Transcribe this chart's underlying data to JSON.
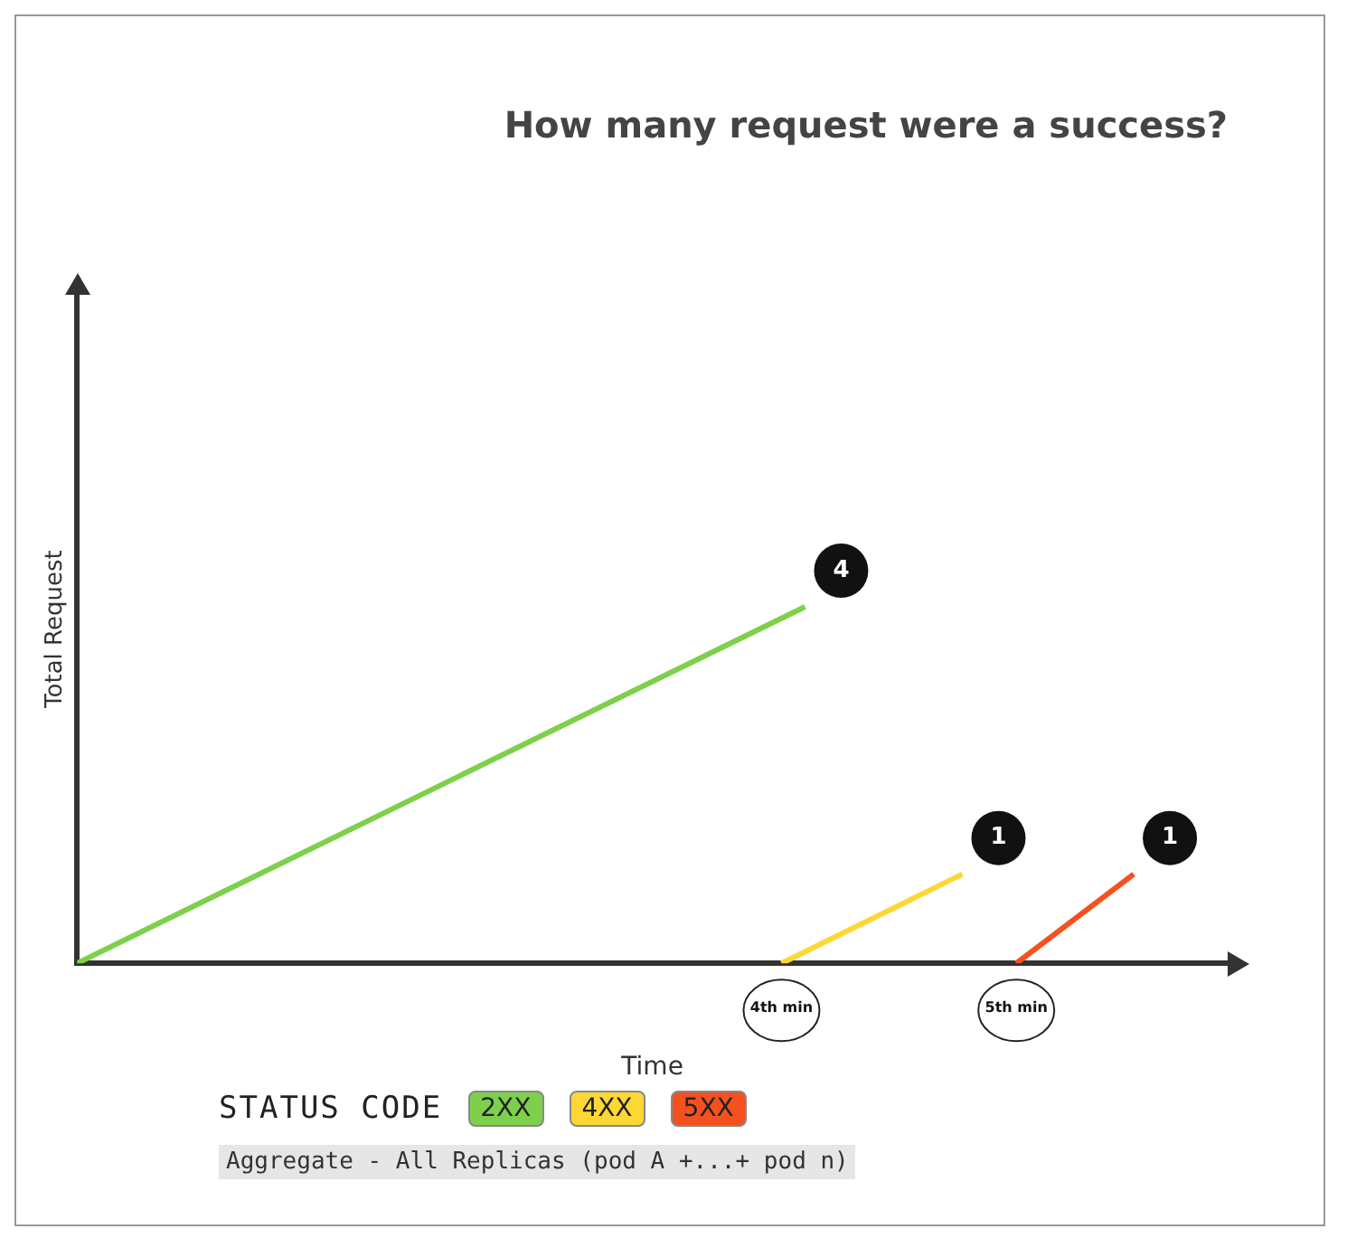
{
  "chart_data": {
    "type": "line",
    "title": "How many request were a success?",
    "xlabel": "Time",
    "ylabel": "Total Request",
    "legend_title": "STATUS CODE",
    "legend": "bottom left",
    "series": [
      {
        "name": "2XX",
        "color": "#7ed04b",
        "x": [
          1,
          4.1
        ],
        "values": [
          0,
          4
        ],
        "value_labels": [
          null,
          "4"
        ]
      },
      {
        "name": "4XX",
        "color": "#fdd835",
        "x": [
          4,
          4.77
        ],
        "values": [
          0,
          1
        ],
        "value_labels": [
          null,
          "1"
        ]
      },
      {
        "name": "5XX",
        "color": "#f4511e",
        "x": [
          5,
          5.5
        ],
        "values": [
          0,
          1
        ],
        "value_labels": [
          null,
          "1"
        ]
      }
    ],
    "xlim": [
      1,
      5.9
    ],
    "xticks": [
      {
        "value": 4,
        "label": "4th min"
      },
      {
        "value": 5,
        "label": "5th min"
      }
    ],
    "ylim": [
      0,
      7.5
    ],
    "tick_labels": "x",
    "grid": false,
    "marker": "none",
    "line_style": "solid",
    "annotations": [
      "Aggregate - All Replicas (pod A +...+ pod n)"
    ]
  }
}
